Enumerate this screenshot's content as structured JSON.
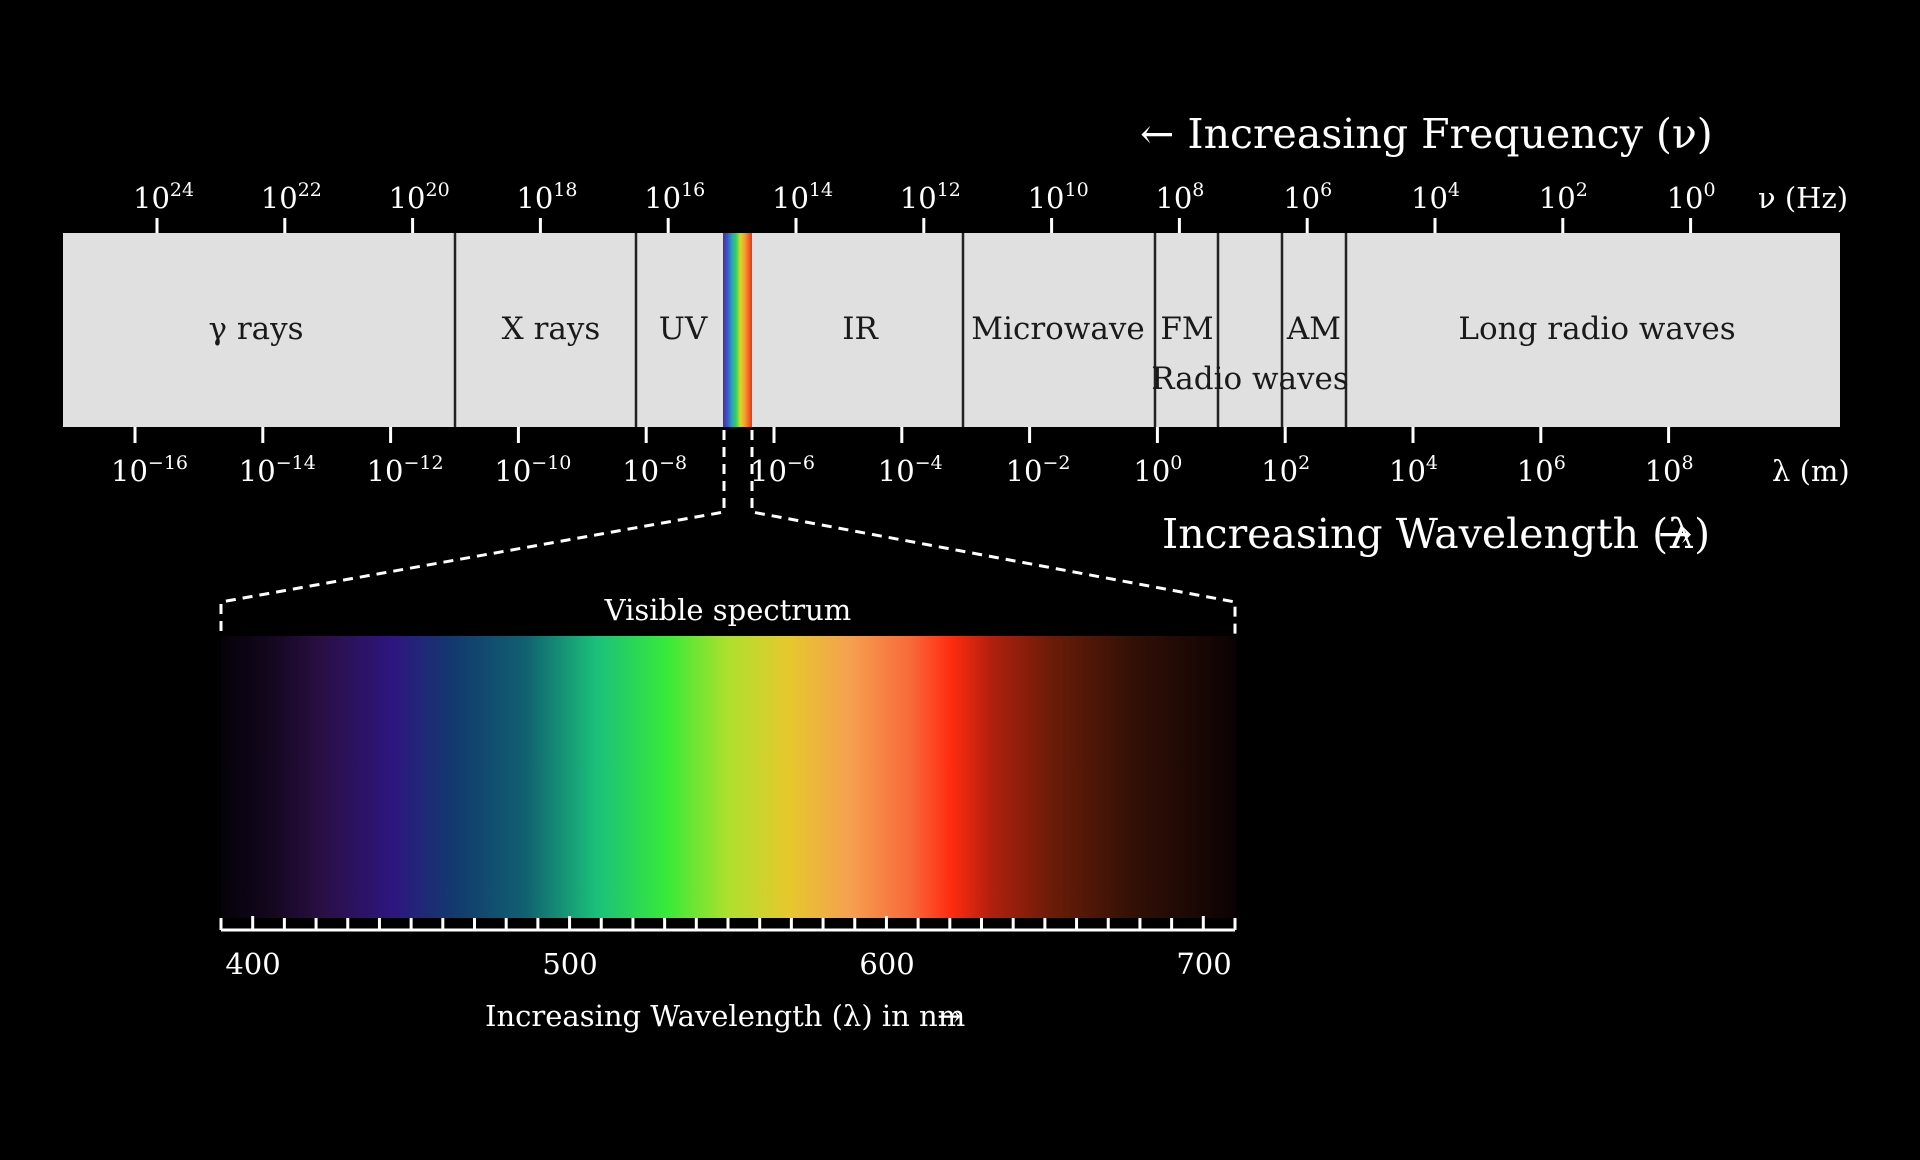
{
  "frequency_axis": {
    "direction_label": "← Increasing Frequency (ν)",
    "unit_label": "ν (Hz)",
    "ticks": [
      {
        "base": "10",
        "exp": "24"
      },
      {
        "base": "10",
        "exp": "22"
      },
      {
        "base": "10",
        "exp": "20"
      },
      {
        "base": "10",
        "exp": "18"
      },
      {
        "base": "10",
        "exp": "16"
      },
      {
        "base": "10",
        "exp": "14"
      },
      {
        "base": "10",
        "exp": "12"
      },
      {
        "base": "10",
        "exp": "10"
      },
      {
        "base": "10",
        "exp": "8"
      },
      {
        "base": "10",
        "exp": "6"
      },
      {
        "base": "10",
        "exp": "4"
      },
      {
        "base": "10",
        "exp": "2"
      },
      {
        "base": "10",
        "exp": "0"
      }
    ]
  },
  "wavelength_axis": {
    "direction_label": "Increasing Wavelength (λ)",
    "direction_arrow": "→",
    "unit_label": "λ (m)",
    "ticks": [
      {
        "base": "10",
        "exp": "−16"
      },
      {
        "base": "10",
        "exp": "−14"
      },
      {
        "base": "10",
        "exp": "−12"
      },
      {
        "base": "10",
        "exp": "−10"
      },
      {
        "base": "10",
        "exp": "−8"
      },
      {
        "base": "10",
        "exp": "−6"
      },
      {
        "base": "10",
        "exp": "−4"
      },
      {
        "base": "10",
        "exp": "−2"
      },
      {
        "base": "10",
        "exp": "0"
      },
      {
        "base": "10",
        "exp": "2"
      },
      {
        "base": "10",
        "exp": "4"
      },
      {
        "base": "10",
        "exp": "6"
      },
      {
        "base": "10",
        "exp": "8"
      }
    ]
  },
  "bands": [
    {
      "label": "γ rays"
    },
    {
      "label": "X rays"
    },
    {
      "label": "UV"
    },
    {
      "label": "IR"
    },
    {
      "label": "Microwave"
    },
    {
      "label": "FM"
    },
    {
      "label": "AM"
    },
    {
      "label": "Radio waves"
    },
    {
      "label": "Long radio waves"
    }
  ],
  "visible": {
    "title": "Visible spectrum",
    "tick_labels": [
      "400",
      "500",
      "600",
      "700"
    ],
    "axis_label": "Increasing Wavelength (λ) in nm",
    "axis_arrow": "→"
  },
  "colors": {
    "background": "#000000",
    "band_fill": "#e0e0e0",
    "text_light": "#ffffff",
    "text_dark": "#111111"
  }
}
